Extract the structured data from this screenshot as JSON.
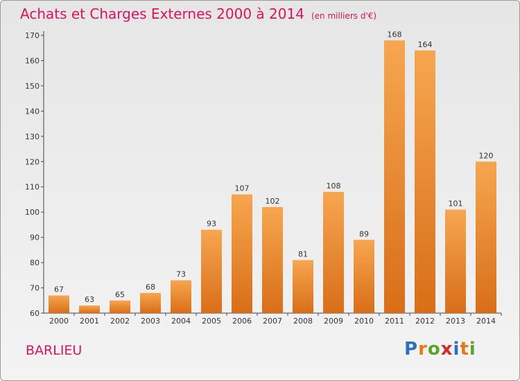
{
  "title": "Achats et Charges Externes 2000 à 2014",
  "unit": "(en milliers d'€)",
  "commune": "BARLIEU",
  "logo": {
    "text": "Proxiti",
    "letters": [
      "P",
      "r",
      "o",
      "x",
      "i",
      "t",
      "i"
    ],
    "colors": [
      "#2b6fc0",
      "#e8771a",
      "#59a52c",
      "#d42a2a",
      "#2b6fc0",
      "#e8771a",
      "#59a52c"
    ]
  },
  "colors": {
    "title": "#e0115f",
    "bar_top": "#f7a650",
    "bar_bottom": "#d86e18",
    "axis": "#444444"
  },
  "chart_data": {
    "type": "bar",
    "title": "Achats et Charges Externes 2000 à 2014",
    "subtitle": "(en milliers d'€)",
    "xlabel": "",
    "ylabel": "",
    "categories": [
      "2000",
      "2001",
      "2002",
      "2003",
      "2004",
      "2005",
      "2006",
      "2007",
      "2008",
      "2009",
      "2010",
      "2011",
      "2012",
      "2013",
      "2014"
    ],
    "values": [
      67,
      63,
      65,
      68,
      73,
      93,
      107,
      102,
      81,
      108,
      89,
      168,
      164,
      101,
      120
    ],
    "ylim": [
      60,
      170
    ],
    "yticks": [
      60,
      70,
      80,
      90,
      100,
      110,
      120,
      130,
      140,
      150,
      160,
      170
    ],
    "grid": false,
    "data_labels": true
  }
}
